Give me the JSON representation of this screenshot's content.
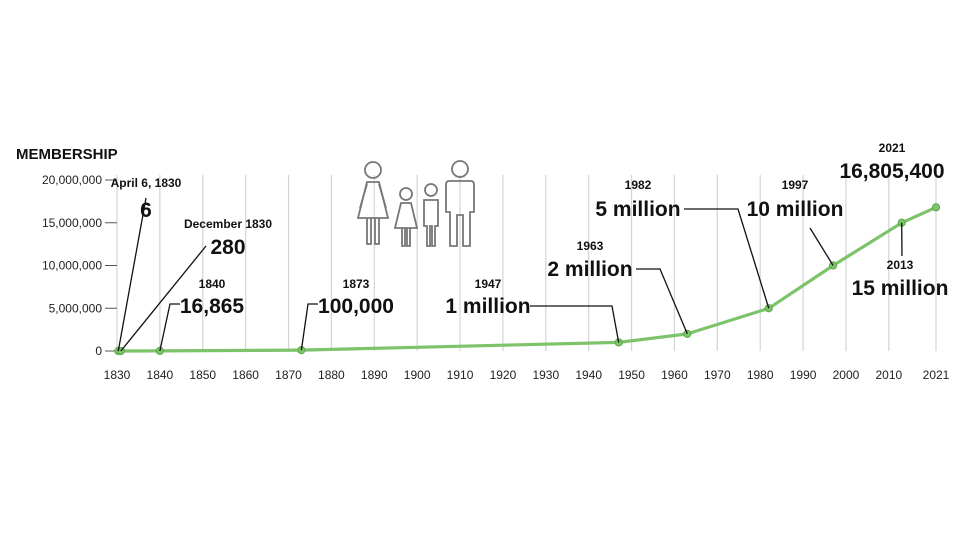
{
  "chart_data": {
    "type": "line",
    "title": "",
    "ylabel": "MEMBERSHIP",
    "xlabel": "",
    "xlim": [
      1830,
      2021
    ],
    "ylim": [
      0,
      20000000
    ],
    "x_ticks": [
      "1830",
      "1840",
      "1850",
      "1860",
      "1870",
      "1880",
      "1890",
      "1900",
      "1910",
      "1920",
      "1930",
      "1940",
      "1950",
      "1960",
      "1970",
      "1980",
      "1990",
      "2000",
      "2010",
      "2021"
    ],
    "y_ticks": [
      "0",
      "5,000,000",
      "10,000,000",
      "15,000,000",
      "20,000,000"
    ],
    "grid": true,
    "series": [
      {
        "color": "#7cc36a",
        "points": [
          {
            "x": 1830.3,
            "y": 6
          },
          {
            "x": 1830.9,
            "y": 280
          },
          {
            "x": 1840,
            "y": 16865
          },
          {
            "x": 1873,
            "y": 100000
          },
          {
            "x": 1947,
            "y": 1000000
          },
          {
            "x": 1963,
            "y": 2000000
          },
          {
            "x": 1982,
            "y": 5000000
          },
          {
            "x": 1997,
            "y": 10000000
          },
          {
            "x": 2013,
            "y": 15000000
          },
          {
            "x": 2021,
            "y": 16805400
          }
        ]
      }
    ],
    "annotations": [
      {
        "date": "April 6, 1830",
        "value": "6"
      },
      {
        "date": "December 1830",
        "value": "280"
      },
      {
        "date": "1840",
        "value": "16,865"
      },
      {
        "date": "1873",
        "value": "100,000"
      },
      {
        "date": "1947",
        "value": "1 million"
      },
      {
        "date": "1963",
        "value": "2 million"
      },
      {
        "date": "1982",
        "value": "5 million"
      },
      {
        "date": "1997",
        "value": "10 million"
      },
      {
        "date": "2013",
        "value": "15 million"
      },
      {
        "date": "2021",
        "value": "16,805,400"
      }
    ]
  },
  "decoration": {
    "icon": "family-icon"
  }
}
